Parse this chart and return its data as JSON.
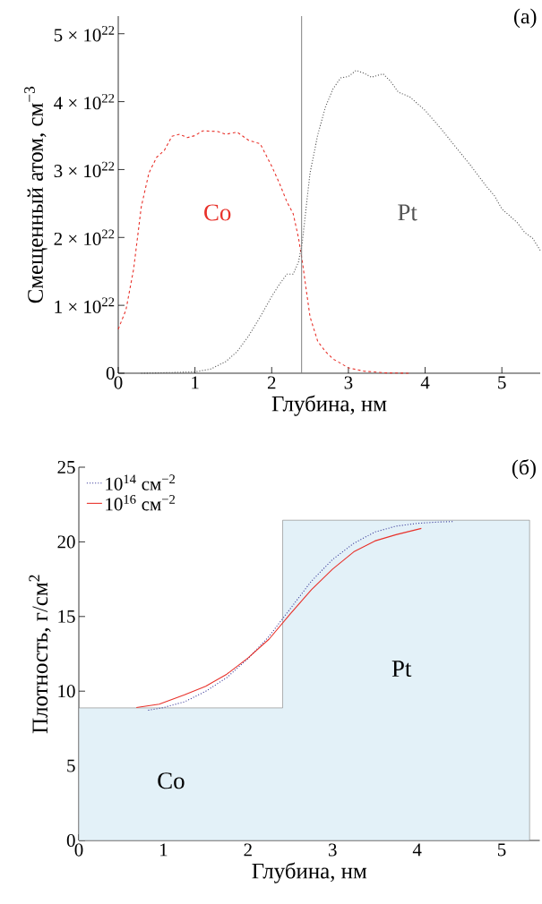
{
  "chart_data": [
    {
      "type": "line",
      "xlabel": "Глубина, нм",
      "ylabel": "Смещенный атом, см$^{−3}$",
      "xlim": [
        0,
        5.5
      ],
      "ylim": [
        0,
        5.26e+22
      ],
      "xticks": [
        0,
        1,
        2,
        3,
        4,
        5
      ],
      "yticks": [
        0,
        {
          "value": 1e+22,
          "label": "1 × 10$^{22}$"
        },
        {
          "value": 2e+22,
          "label": "2 × 10$^{22}$"
        },
        {
          "value": 3e+22,
          "label": "3 × 10$^{22}$"
        },
        {
          "value": 4e+22,
          "label": "4 × 10$^{22}$"
        },
        {
          "value": 5e+22,
          "label": "5 × 10$^{22}$"
        }
      ],
      "series": [
        {
          "name": "Co",
          "color": "#e8312a",
          "line_style": "dashed",
          "x": [
            0,
            0.1,
            0.2,
            0.3,
            0.4,
            0.5,
            0.6,
            0.7,
            0.8,
            0.9,
            1.0,
            1.1,
            1.3,
            1.4,
            1.55,
            1.7,
            1.85,
            2.0,
            2.1,
            2.2,
            2.28,
            2.35,
            2.4,
            2.45,
            2.5,
            2.6,
            2.7,
            2.8,
            3.0,
            3.2,
            3.5,
            3.8
          ],
          "values": [
            6.5e+21,
            9.3e+21,
            1.53e+22,
            2.45e+22,
            2.95e+22,
            3.18e+22,
            3.28e+22,
            3.49e+22,
            3.52e+22,
            3.47e+22,
            3.5e+22,
            3.57e+22,
            3.56e+22,
            3.52e+22,
            3.55e+22,
            3.43e+22,
            3.38e+22,
            3.05e+22,
            2.8e+22,
            2.52e+22,
            2.35e+22,
            1.99e+22,
            1.64e+22,
            1.23e+22,
            8.3e+21,
            4.7e+21,
            3.2e+21,
            2.1e+21,
            8e+20,
            3e+20,
            5e+19,
            0
          ]
        },
        {
          "name": "Pt",
          "color": "#555555",
          "line_style": "dotted",
          "x": [
            0.3,
            0.7,
            1.0,
            1.2,
            1.4,
            1.55,
            1.7,
            1.85,
            2.0,
            2.1,
            2.2,
            2.28,
            2.35,
            2.4,
            2.45,
            2.5,
            2.6,
            2.7,
            2.8,
            2.9,
            3.0,
            3.1,
            3.2,
            3.3,
            3.45,
            3.55,
            3.65,
            3.8,
            4.0,
            4.2,
            4.4,
            4.6,
            4.8,
            4.9,
            5.0,
            5.2,
            5.3,
            5.4,
            5.5
          ],
          "values": [
            0,
            1e+20,
            2e+20,
            6e+20,
            1.7e+21,
            3.2e+21,
            5.5e+21,
            8.3e+21,
            1.13e+22,
            1.31e+22,
            1.46e+22,
            1.46e+22,
            1.64e+22,
            1.94e+22,
            2.45e+22,
            2.95e+22,
            3.51e+22,
            3.92e+22,
            4.19e+22,
            4.35e+22,
            4.37e+22,
            4.46e+22,
            4.42e+22,
            4.36e+22,
            4.41e+22,
            4.3e+22,
            4.14e+22,
            4.07e+22,
            3.87e+22,
            3.61e+22,
            3.33e+22,
            3.05e+22,
            2.75e+22,
            2.62e+22,
            2.42e+22,
            2.22e+22,
            2.07e+22,
            1.99e+22,
            1.81e+22
          ]
        }
      ],
      "ref_lines": [
        {
          "axis": "x",
          "value": 2.39,
          "color": "#808080"
        }
      ],
      "annotations": [
        "(а)"
      ]
    },
    {
      "type": "line",
      "xlabel": "Глубина, нм",
      "ylabel": "Плотность, г/см$^{2}$",
      "xlim": [
        0,
        5.45
      ],
      "ylim": [
        0,
        25
      ],
      "xticks": [
        0,
        1,
        2,
        3,
        4,
        5
      ],
      "yticks": [
        0,
        5,
        10,
        15,
        20,
        25
      ],
      "legend": "top left",
      "series": [
        {
          "type": "area",
          "color": "#e3f1f8",
          "x": [
            0,
            2.41,
            2.41,
            5.33
          ],
          "values": [
            8.88,
            8.88,
            21.45,
            21.45
          ]
        },
        {
          "name": "10$^{14}$ см$^{−2}$",
          "color": "#3a3a9a",
          "line_style": "dotted",
          "x": [
            0.82,
            1.0,
            1.25,
            1.5,
            1.75,
            2.0,
            2.25,
            2.5,
            2.75,
            3.0,
            3.25,
            3.5,
            3.75,
            4.0,
            4.25,
            4.42
          ],
          "values": [
            8.72,
            8.9,
            9.29,
            9.99,
            10.91,
            12.18,
            13.68,
            15.52,
            17.37,
            18.82,
            19.9,
            20.66,
            21.05,
            21.24,
            21.33,
            21.36
          ]
        },
        {
          "name": "10$^{16}$ см$^{−2}$",
          "color": "#e8312a",
          "line_style": "solid",
          "x": [
            0.68,
            0.95,
            1.25,
            1.5,
            1.75,
            2.0,
            2.25,
            2.5,
            2.75,
            3.0,
            3.25,
            3.5,
            3.75,
            4.05
          ],
          "values": [
            8.9,
            9.13,
            9.76,
            10.33,
            11.14,
            12.22,
            13.49,
            15.18,
            16.79,
            18.17,
            19.33,
            20.06,
            20.48,
            20.9
          ]
        }
      ],
      "annotations": [
        "Co",
        "Pt",
        "(б)"
      ]
    }
  ]
}
